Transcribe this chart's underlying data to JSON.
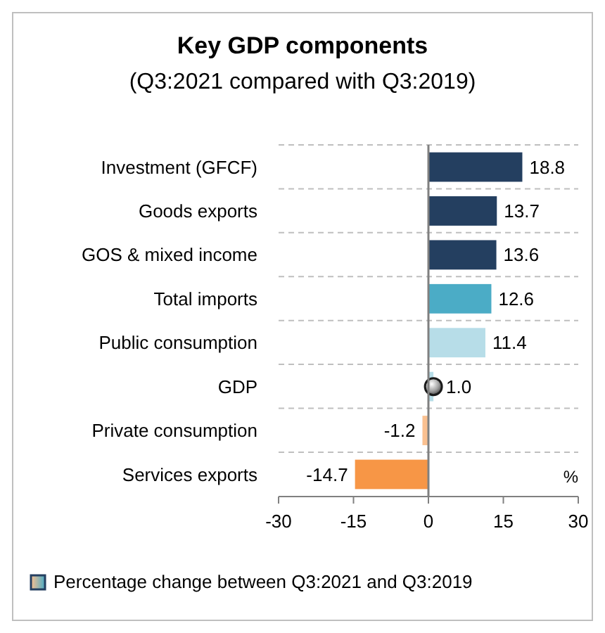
{
  "chart_data": {
    "type": "bar",
    "orientation": "horizontal",
    "title": "Key GDP components",
    "subtitle": "(Q3:2021 compared with Q3:2019)",
    "xlabel": "%",
    "categories": [
      "Investment (GFCF)",
      "Goods exports",
      "GOS & mixed income",
      "Total imports",
      "Public consumption",
      "GDP",
      "Private consumption",
      "Services exports"
    ],
    "series": [
      {
        "name": "Percentage change between Q3:2021 and Q3:2019",
        "values": [
          18.8,
          13.7,
          13.6,
          12.6,
          11.4,
          1.0,
          -1.2,
          -14.7
        ],
        "value_labels": [
          "18.8",
          "13.7",
          "13.6",
          "12.6",
          "11.4",
          "1.0",
          "-1.2",
          "-14.7"
        ],
        "colors": [
          "#243f60",
          "#243f60",
          "#243f60",
          "#4bacc6",
          "#b7dde8",
          "#b7dde8",
          "#fac090",
          "#f79646"
        ]
      },
      {
        "type": "scatter",
        "marker": "circle",
        "color": "#1a1a1a",
        "values": [
          null,
          null,
          null,
          null,
          null,
          1.0,
          null,
          null
        ]
      }
    ],
    "xlim": [
      -30,
      30
    ],
    "xticks": [
      -30,
      -15,
      0,
      15,
      30
    ],
    "grid": "y",
    "legend": "bottom"
  }
}
